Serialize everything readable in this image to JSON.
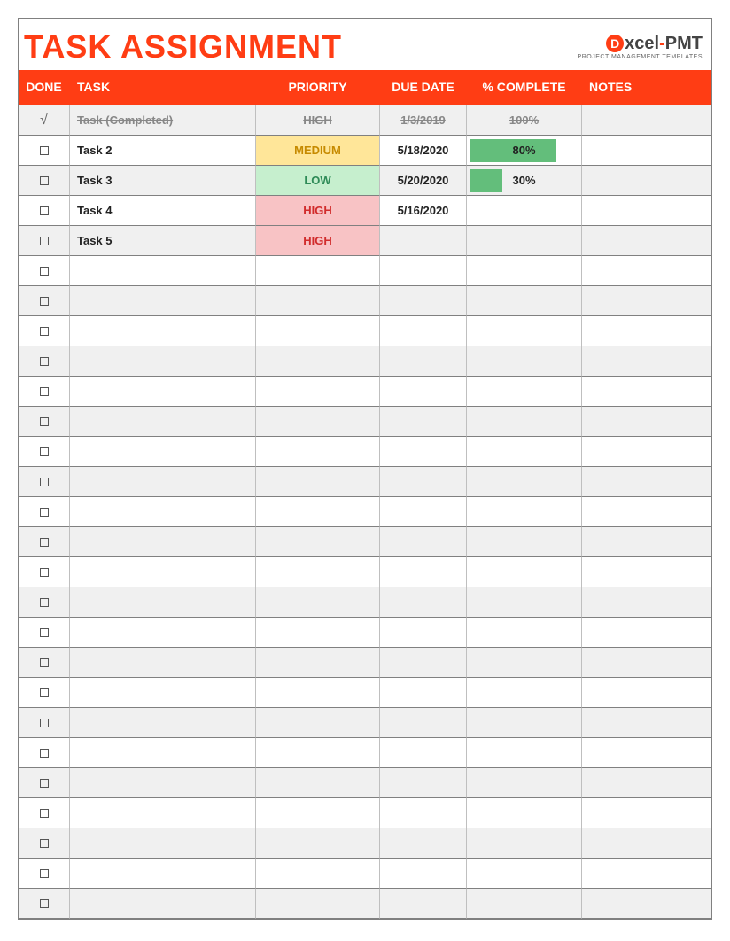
{
  "title": "TASK ASSIGNMENT",
  "brand_color": "#ff3d14",
  "logo": {
    "text_prefix": "xcel",
    "text_suffix": "PMT",
    "subtitle": "PROJECT MANAGEMENT TEMPLATES"
  },
  "columns": {
    "done": "DONE",
    "task": "TASK",
    "priority": "PRIORITY",
    "due": "DUE DATE",
    "complete": "% COMPLETE",
    "notes": "NOTES"
  },
  "priority_styles": {
    "HIGH": {
      "fill": "#f8c3c5",
      "text": "#d12c2c"
    },
    "MEDIUM": {
      "fill": "#ffe699",
      "text": "#c68a00"
    },
    "LOW": {
      "fill": "#c6efce",
      "text": "#2e8b57"
    }
  },
  "progress_bar_color": "#63be7b",
  "row_colors": {
    "even": "#f0f0f0",
    "odd": "#ffffff"
  },
  "total_rows": 27,
  "tasks": [
    {
      "done": true,
      "task": "Task (Completed)",
      "priority": "HIGH",
      "due": "1/3/2019",
      "percent": 100,
      "notes": ""
    },
    {
      "done": false,
      "task": "Task 2",
      "priority": "MEDIUM",
      "due": "5/18/2020",
      "percent": 80,
      "notes": ""
    },
    {
      "done": false,
      "task": "Task 3",
      "priority": "LOW",
      "due": "5/20/2020",
      "percent": 30,
      "notes": ""
    },
    {
      "done": false,
      "task": "Task 4",
      "priority": "HIGH",
      "due": "5/16/2020",
      "percent": null,
      "notes": ""
    },
    {
      "done": false,
      "task": "Task 5",
      "priority": "HIGH",
      "due": "",
      "percent": null,
      "notes": ""
    }
  ]
}
